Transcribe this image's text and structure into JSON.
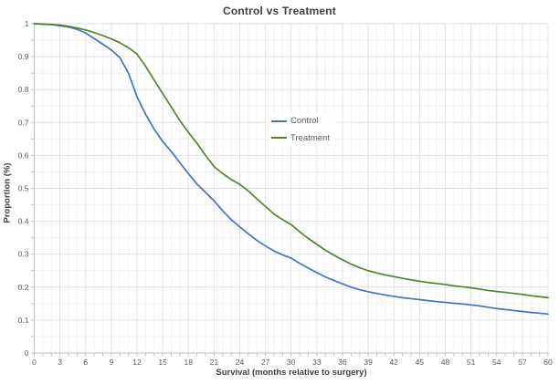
{
  "title": "Control vs Treatment",
  "legend": {
    "position": "center",
    "items": [
      {
        "label": "Control",
        "color": "#4472C4"
      },
      {
        "label": "Treatment",
        "color": "#548235"
      }
    ]
  },
  "colors": {
    "control_line": "#4472C4",
    "treatment_line": "#548235",
    "grid_major": "#e1e1e1",
    "grid_minor": "#f2f2f2",
    "axis_line": "#bfbfbf",
    "tick_label": "#595959",
    "title_text": "#404040",
    "background": "#ffffff"
  },
  "chart_data": {
    "type": "line",
    "title": "Control vs Treatment",
    "xlabel": "Survival (months relative to surgery)",
    "ylabel": "Proportion (%)",
    "xlim": [
      0,
      60
    ],
    "ylim": [
      0,
      1
    ],
    "grid": true,
    "legend_position": "center",
    "x_ticks": [
      "0",
      "3",
      "6",
      "9",
      "12",
      "15",
      "18",
      "21",
      "24",
      "27",
      "30",
      "33",
      "36",
      "39",
      "42",
      "45",
      "48",
      "51",
      "54",
      "57",
      "60"
    ],
    "y_ticks": [
      "0",
      "0.1",
      "0.2",
      "0.3",
      "0.4",
      "0.5",
      "0.6",
      "0.7",
      "0.8",
      "0.9",
      "1"
    ],
    "x_major_step": 3,
    "x_minor_step": 1,
    "y_major_step": 0.1,
    "y_minor_step": 0.05,
    "x": [
      0,
      1,
      2,
      3,
      4,
      5,
      6,
      7,
      8,
      9,
      10,
      11,
      12,
      13,
      14,
      15,
      16,
      17,
      18,
      19,
      20,
      21,
      22,
      23,
      24,
      25,
      26,
      27,
      28,
      29,
      30,
      31,
      32,
      33,
      34,
      35,
      36,
      37,
      38,
      39,
      40,
      41,
      42,
      43,
      44,
      45,
      46,
      47,
      48,
      49,
      50,
      51,
      52,
      53,
      54,
      55,
      56,
      57,
      58,
      59,
      60
    ],
    "series": [
      {
        "name": "Control",
        "color": "#4472C4",
        "values": [
          1.0,
          0.999,
          0.997,
          0.994,
          0.99,
          0.983,
          0.972,
          0.955,
          0.938,
          0.92,
          0.897,
          0.85,
          0.778,
          0.725,
          0.68,
          0.642,
          0.612,
          0.578,
          0.545,
          0.513,
          0.488,
          0.462,
          0.432,
          0.405,
          0.383,
          0.362,
          0.342,
          0.325,
          0.31,
          0.298,
          0.288,
          0.272,
          0.258,
          0.244,
          0.231,
          0.22,
          0.21,
          0.2,
          0.192,
          0.186,
          0.181,
          0.176,
          0.172,
          0.168,
          0.165,
          0.162,
          0.159,
          0.156,
          0.154,
          0.151,
          0.149,
          0.146,
          0.143,
          0.139,
          0.135,
          0.132,
          0.129,
          0.126,
          0.123,
          0.121,
          0.118
        ]
      },
      {
        "name": "Treatment",
        "color": "#548235",
        "values": [
          1.0,
          0.999,
          0.998,
          0.996,
          0.992,
          0.987,
          0.981,
          0.973,
          0.964,
          0.954,
          0.942,
          0.927,
          0.908,
          0.871,
          0.829,
          0.788,
          0.747,
          0.706,
          0.67,
          0.637,
          0.6,
          0.566,
          0.545,
          0.527,
          0.512,
          0.492,
          0.468,
          0.445,
          0.422,
          0.405,
          0.39,
          0.368,
          0.348,
          0.33,
          0.312,
          0.297,
          0.283,
          0.27,
          0.259,
          0.25,
          0.243,
          0.237,
          0.232,
          0.227,
          0.222,
          0.218,
          0.214,
          0.211,
          0.208,
          0.204,
          0.201,
          0.198,
          0.194,
          0.19,
          0.187,
          0.184,
          0.181,
          0.178,
          0.174,
          0.171,
          0.168
        ]
      }
    ]
  }
}
